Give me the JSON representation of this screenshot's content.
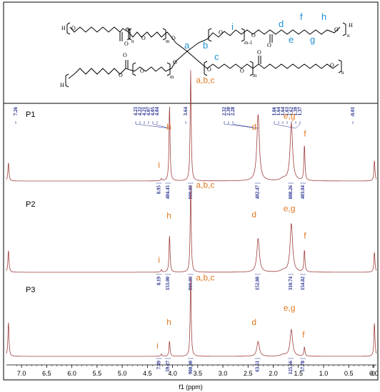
{
  "colors": {
    "spectrum": "#a04040",
    "peak_label": "#e07820",
    "structure_label": "#1f8fd0",
    "integration": "#1f2a8c",
    "frame": "#000000"
  },
  "structure": {
    "letters": [
      "a",
      "b",
      "c",
      "i",
      "d",
      "e",
      "f",
      "g",
      "h"
    ],
    "subscripts": [
      "n",
      "m",
      "m-1",
      "m",
      "m",
      "n",
      "n"
    ],
    "atoms": [
      "O",
      "O",
      "O",
      "O",
      "O",
      "O",
      "O",
      "O",
      "O",
      "O",
      "O",
      "O",
      "O",
      "O",
      "O",
      "O",
      "O"
    ],
    "hydrogens": [
      "H",
      "H",
      "H"
    ]
  },
  "chart_data": {
    "type": "line",
    "xlabel": "f1 (ppm)",
    "xlim": [
      7.3,
      -0.05
    ],
    "x_ticks": [
      "7.0",
      "6.5",
      "6.0",
      "5.5",
      "5.0",
      "4.5",
      "4.0",
      "3.5",
      "3.0",
      "2.5",
      "2.0",
      "1.5",
      "1.0",
      "0.5",
      "0.0",
      "-0."
    ],
    "top_peak_labels": [
      "7.26",
      "4.23",
      "4.22",
      "4.21",
      "4.07",
      "4.05",
      "4.04",
      "3.64",
      "2.32",
      "2.30",
      "2.28",
      "1.66",
      "1.64",
      "1.64",
      "1.63",
      "1.62",
      "1.39",
      "1.37",
      "-0.01"
    ],
    "series": [
      {
        "name": "P1",
        "peaks": [
          {
            "shift": 7.26,
            "height": 0.17
          },
          {
            "shift": 4.22,
            "height": 0.02
          },
          {
            "shift": 4.06,
            "height": 0.69
          },
          {
            "shift": 3.64,
            "height": 1.0
          },
          {
            "shift": 2.3,
            "height": 0.6
          },
          {
            "shift": 1.64,
            "height": 0.52
          },
          {
            "shift": 1.38,
            "height": 0.33
          },
          {
            "shift": -0.01,
            "height": 0.19
          }
        ],
        "labels": [
          {
            "text": "h",
            "shift": 4.07,
            "height": 0.46
          },
          {
            "text": "a,b,c",
            "shift": 3.35,
            "height": 0.88
          },
          {
            "text": "i",
            "shift": 4.27,
            "height": 0.12
          },
          {
            "text": "d",
            "shift": 2.38,
            "height": 0.46
          },
          {
            "text": "e,g",
            "shift": 1.68,
            "height": 0.56
          },
          {
            "text": "f",
            "shift": 1.37,
            "height": 0.4
          }
        ],
        "integrals": [
          {
            "value": "8.95",
            "shift": 4.27
          },
          {
            "value": "404.45",
            "shift": 4.09
          },
          {
            "value": "900.00",
            "shift": 3.64
          },
          {
            "value": "402.47",
            "shift": 2.31
          },
          {
            "value": "808.26",
            "shift": 1.65
          },
          {
            "value": "403.04",
            "shift": 1.41
          }
        ]
      },
      {
        "name": "P2",
        "peaks": [
          {
            "shift": 7.26,
            "height": 0.26
          },
          {
            "shift": 4.22,
            "height": 0.03
          },
          {
            "shift": 4.06,
            "height": 0.43
          },
          {
            "shift": 3.64,
            "height": 1.0
          },
          {
            "shift": 2.3,
            "height": 0.39
          },
          {
            "shift": 1.64,
            "height": 0.56
          },
          {
            "shift": 1.38,
            "height": 0.26
          },
          {
            "shift": -0.01,
            "height": 0.24
          }
        ],
        "labels": [
          {
            "text": "h",
            "shift": 4.07,
            "height": 0.62
          },
          {
            "text": "a,b,c",
            "shift": 3.35,
            "height": 0.97
          },
          {
            "text": "i",
            "shift": 4.27,
            "height": 0.11
          },
          {
            "text": "d",
            "shift": 2.38,
            "height": 0.63
          },
          {
            "text": "e,g",
            "shift": 1.68,
            "height": 0.7
          },
          {
            "text": "f",
            "shift": 1.37,
            "height": 0.39
          }
        ],
        "integrals": [
          {
            "value": "8.19",
            "shift": 4.27
          },
          {
            "value": "153.00",
            "shift": 4.09
          },
          {
            "value": "900.00",
            "shift": 3.64
          },
          {
            "value": "152.88",
            "shift": 2.31
          },
          {
            "value": "310.74",
            "shift": 1.65
          },
          {
            "value": "154.82",
            "shift": 1.41
          }
        ]
      },
      {
        "name": "P3",
        "peaks": [
          {
            "shift": 7.26,
            "height": 0.45
          },
          {
            "shift": 4.22,
            "height": 0.03
          },
          {
            "shift": 4.06,
            "height": 0.2
          },
          {
            "shift": 3.64,
            "height": 1.0
          },
          {
            "shift": 2.3,
            "height": 0.19
          },
          {
            "shift": 1.64,
            "height": 0.34
          },
          {
            "shift": 1.38,
            "height": 0.12
          },
          {
            "shift": -0.01,
            "height": 0.44
          }
        ],
        "labels": [
          {
            "text": "h",
            "shift": 4.07,
            "height": 0.4
          },
          {
            "text": "a,b,c",
            "shift": 3.35,
            "height": 0.97
          },
          {
            "text": "i",
            "shift": 4.3,
            "height": 0.1
          },
          {
            "text": "d",
            "shift": 2.38,
            "height": 0.4
          },
          {
            "text": "e,g",
            "shift": 1.68,
            "height": 0.58
          },
          {
            "text": "f",
            "shift": 1.4,
            "height": 0.24
          }
        ],
        "integrals": [
          {
            "value": "7.49",
            "shift": 4.27
          },
          {
            "value": "59.27",
            "shift": 4.09
          },
          {
            "value": "900.00",
            "shift": 3.64
          },
          {
            "value": "63.51",
            "shift": 2.31
          },
          {
            "value": "125.66",
            "shift": 1.65
          },
          {
            "value": "57.78",
            "shift": 1.41
          }
        ]
      }
    ]
  }
}
